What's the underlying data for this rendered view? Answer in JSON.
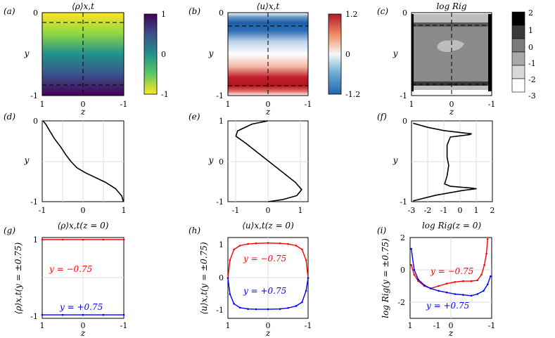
{
  "chart_data": [
    {
      "panel": "(a)",
      "type": "heatmap",
      "title": "⟨ρ⟩x,t",
      "xlabel": "z",
      "ylabel": "y",
      "xticks": [
        "1",
        "0",
        "-1"
      ],
      "yticks": [
        "0",
        "-1"
      ],
      "colorbar": {
        "ticks": [
          "1",
          "0",
          "-1"
        ],
        "range": [
          -1,
          1
        ],
        "colormap": "viridis"
      },
      "dashed_lines": {
        "y": [
          -0.1,
          -0.9
        ],
        "z": [
          0
        ]
      }
    },
    {
      "panel": "(b)",
      "type": "heatmap",
      "title": "⟨u⟩x,t",
      "xlabel": "z",
      "ylabel": "y",
      "xticks": [
        "1",
        "0",
        "-1"
      ],
      "yticks": [
        "0",
        "-1"
      ],
      "colorbar": {
        "ticks": [
          "1.2",
          "0",
          "-1.2"
        ],
        "range": [
          -1.2,
          1.2
        ],
        "colormap": "red-white-blue"
      },
      "dashed_lines": {
        "y": [
          -0.1,
          -0.9
        ],
        "z": [
          0
        ]
      }
    },
    {
      "panel": "(c)",
      "type": "heatmap",
      "title": "log Rig",
      "xlabel": "z",
      "ylabel": "y",
      "xticks": [
        "1",
        "0",
        "-1"
      ],
      "yticks": [
        "0",
        "-1"
      ],
      "colorbar": {
        "ticks": [
          "2",
          "1",
          "0",
          "-1",
          "-2",
          "-3"
        ],
        "range": [
          -3,
          2
        ],
        "colormap": "gray-discrete"
      },
      "dashed_lines": {
        "y": [
          -0.1,
          -0.9
        ],
        "z": [
          0
        ]
      }
    },
    {
      "panel": "(d)",
      "type": "line",
      "xlabel": "⟨ρ⟩x,t(z = 0)",
      "ylabel": "y",
      "xlim": [
        -1,
        1
      ],
      "ylim": [
        -1,
        0
      ],
      "xticks": [
        "-1",
        "0",
        "1"
      ],
      "yticks": [
        "0",
        "-1"
      ],
      "x": [
        -0.98,
        -0.9,
        -0.82,
        -0.7,
        -0.55,
        -0.42,
        -0.3,
        -0.15,
        0.05,
        0.3,
        0.55,
        0.8,
        0.95,
        0.99
      ],
      "y": [
        0,
        -0.05,
        -0.12,
        -0.22,
        -0.32,
        -0.42,
        -0.5,
        -0.58,
        -0.64,
        -0.7,
        -0.76,
        -0.84,
        -0.93,
        -1
      ]
    },
    {
      "panel": "(e)",
      "type": "line",
      "xlabel": "⟨u⟩x,t(z = 0)",
      "ylabel": "y",
      "xlim": [
        -1.25,
        1.25
      ],
      "ylim": [
        -1,
        1
      ],
      "xticks": [
        "-1",
        "0",
        "1"
      ],
      "yticks": [
        "1",
        "0",
        "-1"
      ],
      "x": [
        0,
        -0.5,
        -0.95,
        -1.0,
        -0.7,
        -0.3,
        0.1,
        0.5,
        0.85,
        1.05,
        0.9,
        0.45,
        0
      ],
      "y": [
        1,
        0.92,
        0.75,
        0.62,
        0.45,
        0.2,
        -0.05,
        -0.3,
        -0.52,
        -0.7,
        -0.85,
        -0.95,
        -1
      ]
    },
    {
      "panel": "(f)",
      "type": "line",
      "xlabel": "log Rig(z = 0)",
      "ylabel": "y",
      "xlim": [
        -3,
        2
      ],
      "ylim": [
        -1,
        0
      ],
      "xticks": [
        "-3",
        "-2",
        "-1",
        "0",
        "1",
        "2"
      ],
      "yticks": [
        "0",
        "-1"
      ],
      "x": [
        -2.9,
        -2.0,
        -1.0,
        0.3,
        0.7,
        0.6,
        -0.6,
        -0.8,
        -0.8,
        -0.7,
        -0.8,
        -0.95,
        -0.6,
        0.6,
        1.0,
        0.2,
        -1.5,
        -2.9
      ],
      "y": [
        -0.03,
        -0.08,
        -0.12,
        -0.15,
        -0.16,
        -0.17,
        -0.2,
        -0.3,
        -0.45,
        -0.55,
        -0.68,
        -0.78,
        -0.81,
        -0.83,
        -0.84,
        -0.86,
        -0.92,
        -0.99
      ]
    },
    {
      "panel": "(g)",
      "type": "line",
      "xlabel": "z",
      "ylabel": "⟨ρ⟩x,t(y = ±0.75)",
      "xlim": [
        1,
        -1
      ],
      "ylim": [
        -1.08,
        1.05
      ],
      "xticks": [
        "1",
        "0",
        "-1"
      ],
      "yticks": [
        "1",
        "-1"
      ],
      "series": [
        {
          "name": "y = −0.75",
          "color": "#ff0000",
          "x": [
            1,
            0.5,
            0,
            -0.5,
            -1
          ],
          "values": [
            0.995,
            0.995,
            0.995,
            0.995,
            0.995
          ]
        },
        {
          "name": "y = +0.75",
          "color": "#0000ff",
          "x": [
            1,
            0.5,
            0,
            -0.5,
            -1
          ],
          "values": [
            -0.99,
            -0.99,
            -0.99,
            -0.99,
            -0.99
          ]
        }
      ]
    },
    {
      "panel": "(h)",
      "type": "line",
      "xlabel": "z",
      "ylabel": "⟨u⟩x,t(y = ±0.75)",
      "xlim": [
        1,
        -1
      ],
      "ylim": [
        -1.25,
        1.25
      ],
      "xticks": [
        "1",
        "0",
        "-1"
      ],
      "yticks": [
        "1",
        "0",
        "-1"
      ],
      "series": [
        {
          "name": "y = −0.75",
          "color": "#ff0000",
          "x": [
            1,
            0.95,
            0.85,
            0.7,
            0.5,
            0.3,
            0,
            -0.3,
            -0.5,
            -0.7,
            -0.85,
            -0.95,
            -1
          ],
          "values": [
            0,
            0.55,
            0.88,
            1.0,
            1.05,
            1.07,
            1.08,
            1.07,
            1.05,
            1.0,
            0.88,
            0.55,
            0
          ]
        },
        {
          "name": "y = +0.75",
          "color": "#0000ff",
          "x": [
            1,
            0.95,
            0.85,
            0.7,
            0.5,
            0.3,
            0,
            -0.3,
            -0.5,
            -0.7,
            -0.85,
            -0.95,
            -1
          ],
          "values": [
            0,
            -0.5,
            -0.8,
            -0.92,
            -0.96,
            -0.97,
            -0.97,
            -0.96,
            -0.93,
            -0.87,
            -0.75,
            -0.4,
            0
          ]
        }
      ]
    },
    {
      "panel": "(i)",
      "type": "line",
      "xlabel": "z",
      "ylabel": "log Rig(y = ±0.75)",
      "xlim": [
        1,
        -1
      ],
      "ylim": [
        -3,
        2
      ],
      "xticks": [
        "1",
        "-1",
        "0",
        "-1"
      ],
      "yticks": [
        "2",
        "0",
        "-2"
      ],
      "series": [
        {
          "name": "y = −0.75",
          "color": "#ff0000",
          "x": [
            0.97,
            0.9,
            0.8,
            0.65,
            0.5,
            0.3,
            0.1,
            -0.1,
            -0.3,
            -0.5,
            -0.65,
            -0.75,
            -0.82,
            -0.87,
            -0.9
          ],
          "values": [
            0.3,
            -0.3,
            -0.7,
            -1.0,
            -1.15,
            -1.0,
            -0.85,
            -0.75,
            -0.7,
            -0.7,
            -0.65,
            -0.3,
            0.3,
            1.0,
            1.9
          ]
        },
        {
          "name": "y = +0.75",
          "color": "#0000ff",
          "x": [
            0.97,
            0.9,
            0.8,
            0.65,
            0.5,
            0.3,
            0.1,
            -0.1,
            -0.3,
            -0.5,
            -0.65,
            -0.8,
            -0.9,
            -0.97
          ],
          "values": [
            1.3,
            0.0,
            -0.6,
            -0.95,
            -1.15,
            -1.3,
            -1.4,
            -1.5,
            -1.55,
            -1.6,
            -1.5,
            -1.3,
            -0.9,
            -0.4
          ]
        }
      ]
    }
  ]
}
